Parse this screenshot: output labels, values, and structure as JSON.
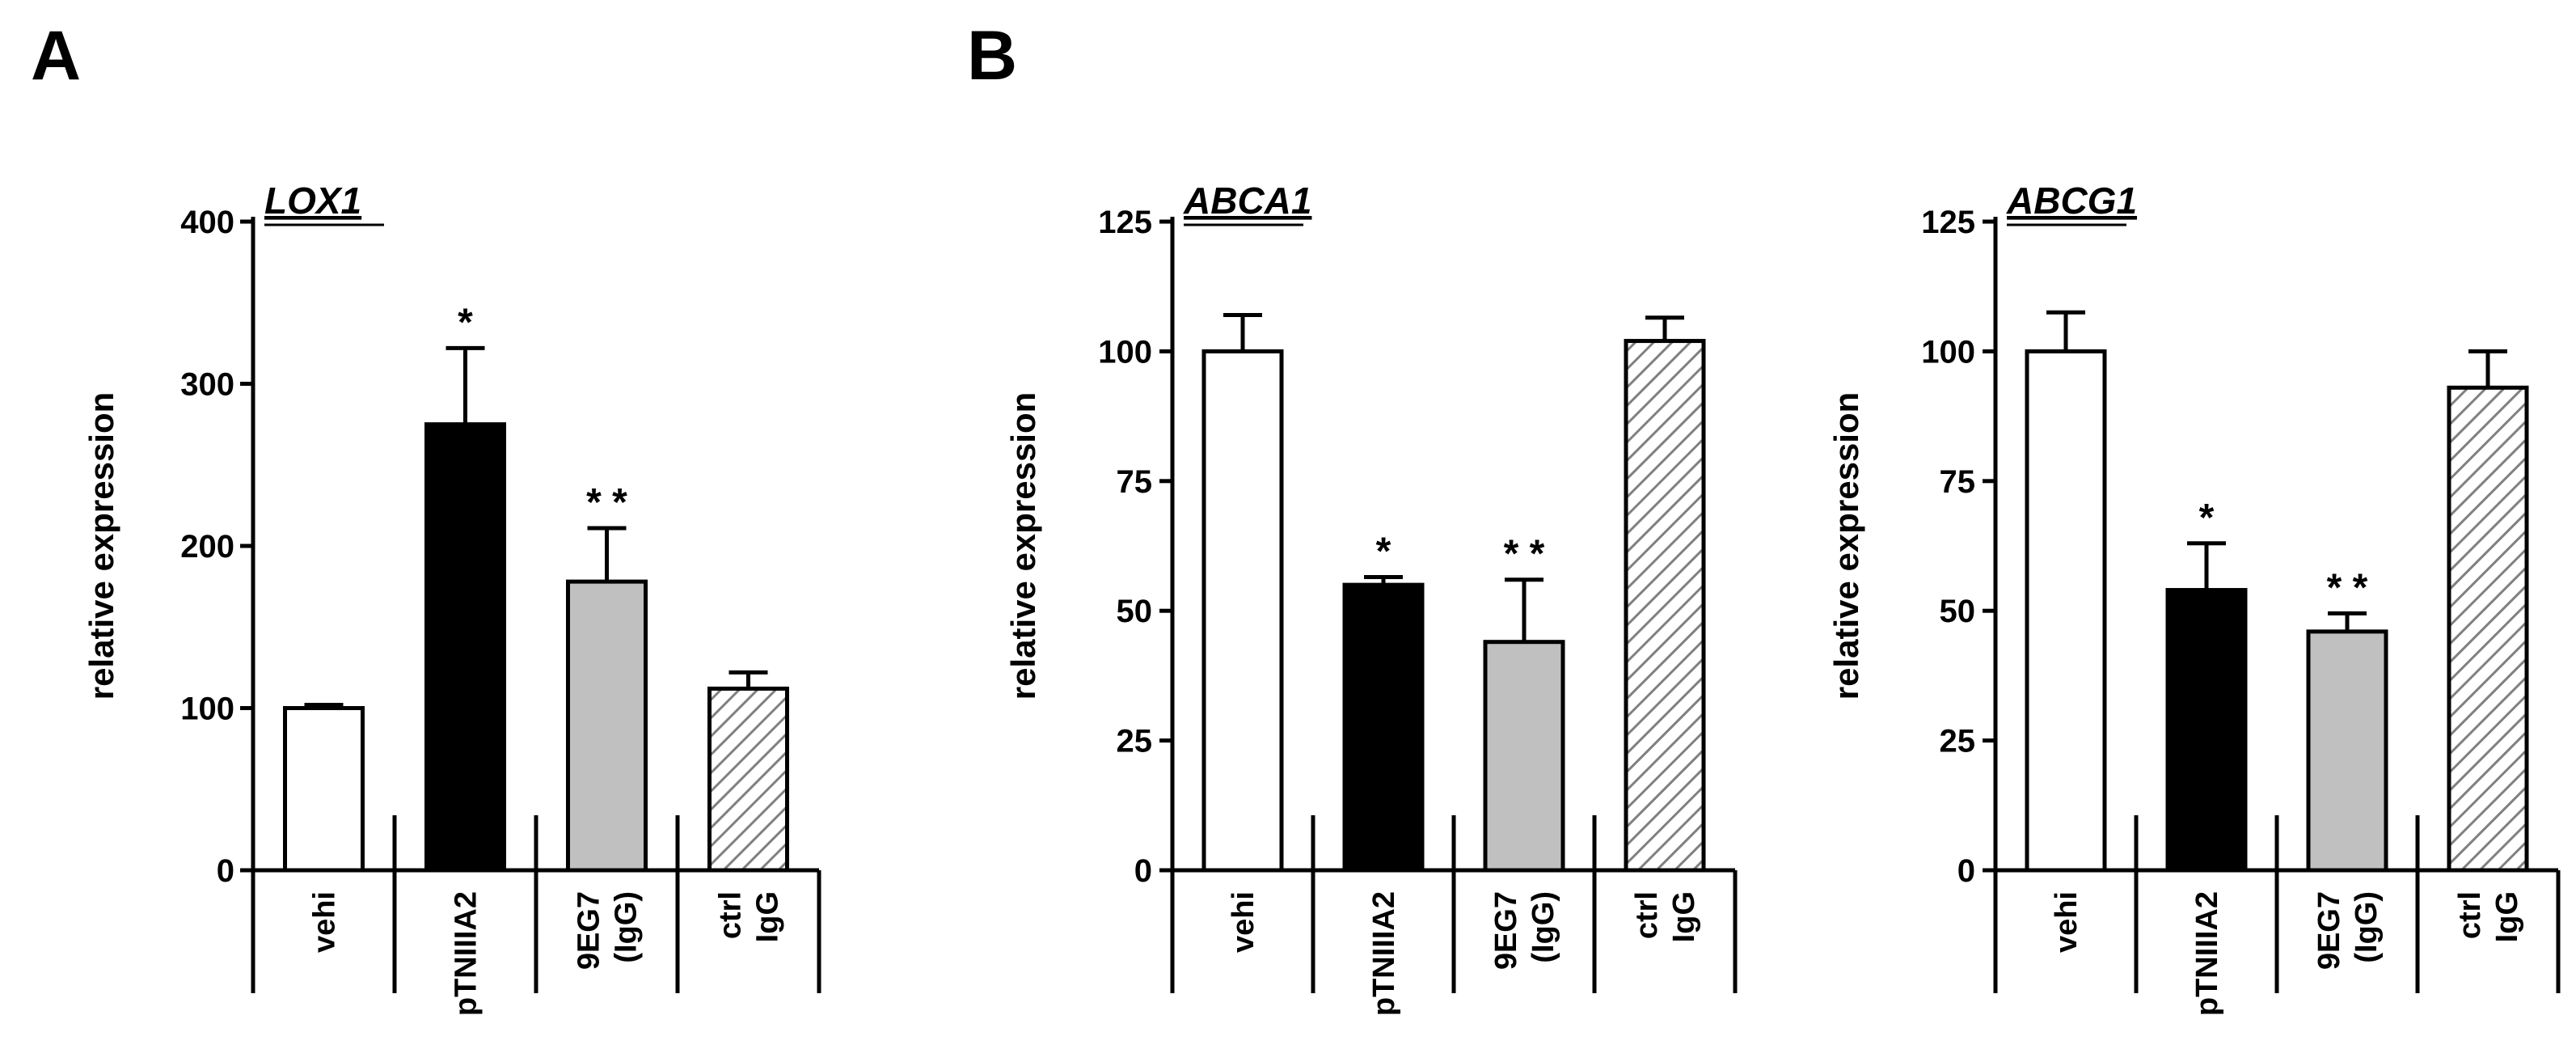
{
  "panels": [
    {
      "letter": "A"
    },
    {
      "letter": "B"
    }
  ],
  "chart_data": [
    {
      "type": "bar",
      "gene": "LOX1",
      "ylabel": "relative expression",
      "ylim": [
        0,
        400
      ],
      "yticks": [
        0,
        100,
        200,
        300,
        400
      ],
      "categories": [
        [
          "vehi"
        ],
        [
          "pTNIIIA2"
        ],
        [
          "9EG7",
          "(IgG)"
        ],
        [
          "ctrl",
          "IgG"
        ]
      ],
      "values": [
        100,
        275,
        178,
        112
      ],
      "errors": [
        2,
        47,
        33,
        10
      ],
      "significance": [
        "",
        "*",
        "* *",
        ""
      ],
      "fills": [
        "#ffffff",
        "#000000",
        "#c0c0c0",
        "hatch"
      ]
    },
    {
      "type": "bar",
      "gene": "ABCA1",
      "ylabel": "relative expression",
      "ylim": [
        0,
        125
      ],
      "yticks": [
        0,
        25,
        50,
        75,
        100,
        125
      ],
      "categories": [
        [
          "vehi"
        ],
        [
          "pTNIIIA2"
        ],
        [
          "9EG7",
          "(IgG)"
        ],
        [
          "ctrl",
          "IgG"
        ]
      ],
      "values": [
        100,
        55,
        44,
        102
      ],
      "errors": [
        7,
        1.5,
        12,
        4.5
      ],
      "significance": [
        "",
        "*",
        "* *",
        ""
      ],
      "fills": [
        "#ffffff",
        "#000000",
        "#c0c0c0",
        "hatch"
      ]
    },
    {
      "type": "bar",
      "gene": "ABCG1",
      "ylabel": "relative expression",
      "ylim": [
        0,
        125
      ],
      "yticks": [
        0,
        25,
        50,
        75,
        100,
        125
      ],
      "categories": [
        [
          "vehi"
        ],
        [
          "pTNIIIA2"
        ],
        [
          "9EG7",
          "(IgG)"
        ],
        [
          "ctrl",
          "IgG"
        ]
      ],
      "values": [
        100,
        54,
        46,
        93
      ],
      "errors": [
        7.5,
        9,
        3.5,
        7
      ],
      "significance": [
        "",
        "*",
        "* *",
        ""
      ],
      "fills": [
        "#ffffff",
        "#000000",
        "#c0c0c0",
        "hatch"
      ]
    }
  ]
}
